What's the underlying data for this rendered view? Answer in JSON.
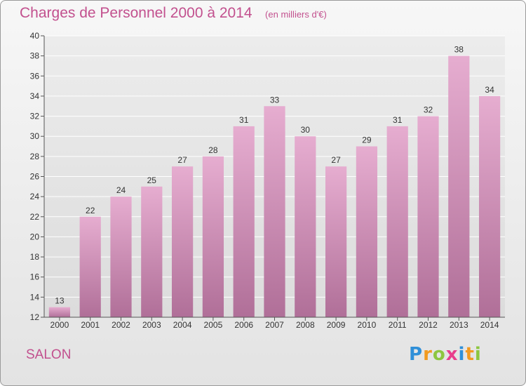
{
  "chart_data": {
    "type": "bar",
    "title": "Charges de Personnel 2000 à 2014",
    "subtitle": "(en milliers d'€)",
    "categories": [
      "2000",
      "2001",
      "2002",
      "2003",
      "2004",
      "2005",
      "2006",
      "2007",
      "2008",
      "2009",
      "2010",
      "2011",
      "2012",
      "2013",
      "2014"
    ],
    "values": [
      13,
      22,
      24,
      25,
      27,
      28,
      31,
      33,
      30,
      27,
      29,
      31,
      32,
      38,
      34
    ],
    "ylim": [
      12,
      40
    ],
    "yticks": [
      12,
      14,
      16,
      18,
      20,
      22,
      24,
      26,
      28,
      30,
      32,
      34,
      36,
      38,
      40
    ],
    "xlabel": "",
    "ylabel": "",
    "grid": true,
    "bar_color": "#d99ac0"
  },
  "location": "SALON",
  "brand": {
    "letters": [
      {
        "char": "P",
        "color": "#2f8fd8"
      },
      {
        "char": "r",
        "color": "#f29a1f"
      },
      {
        "char": "o",
        "color": "#8dc63f"
      },
      {
        "char": "x",
        "color": "#e83e8c"
      },
      {
        "char": "i",
        "color": "#2f8fd8"
      },
      {
        "char": "t",
        "color": "#f29a1f"
      },
      {
        "char": "i",
        "color": "#8dc63f"
      }
    ]
  }
}
